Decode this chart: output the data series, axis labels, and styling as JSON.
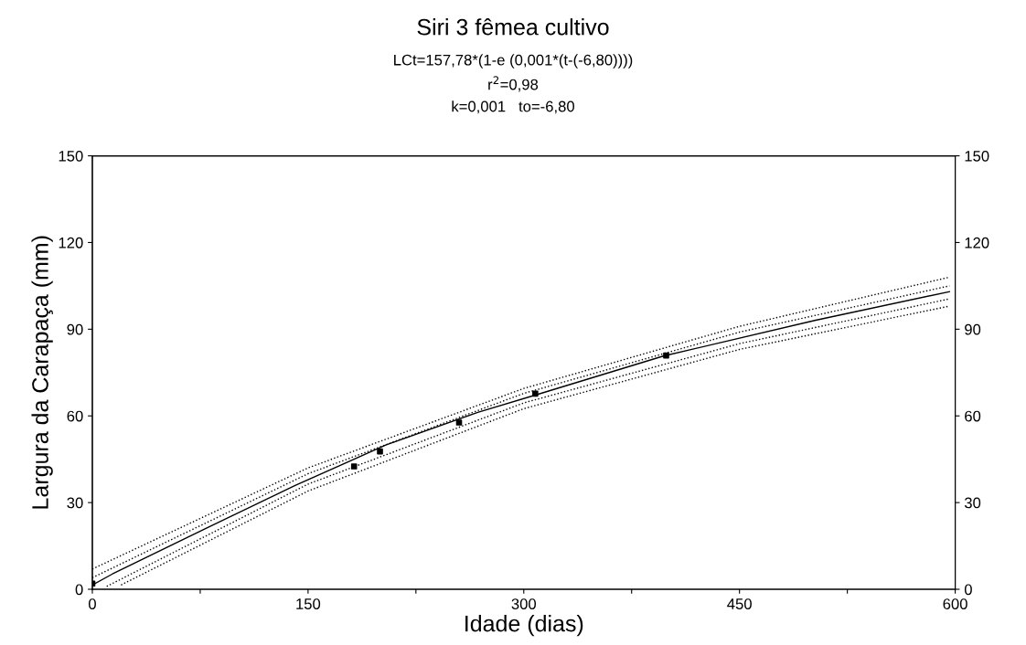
{
  "chart_data": {
    "type": "scatter",
    "title": "Siri 3 fêmea cultivo",
    "annotations": [
      "LCt=157,78*(1-e (0,001*(t-(-6,80))))",
      "r$^{2}$=0,98",
      "k=0,001   to=-6,80"
    ],
    "xlabel": "Idade (dias)",
    "ylabel": "Largura da Carapaça (mm)",
    "xlim": [
      0,
      600
    ],
    "xticks": [
      0,
      {
        "value": 75,
        "label": null
      },
      150,
      {
        "value": 225,
        "label": null
      },
      300,
      {
        "value": 375,
        "label": null
      },
      450,
      {
        "value": 525,
        "label": null
      },
      600
    ],
    "ylim": [
      0,
      150
    ],
    "yticks": [
      0,
      30,
      60,
      90,
      120,
      150
    ],
    "y2lim": [
      0,
      150
    ],
    "y2ticks": [
      0,
      30,
      60,
      90,
      120,
      150
    ],
    "grid": false,
    "series": [
      {
        "color": "#000000",
        "marker": "square",
        "x": [
          0,
          182,
          200,
          255,
          308,
          399
        ],
        "values": [
          2,
          42.5,
          47.7,
          57.7,
          67.7,
          80.9
        ]
      },
      {
        "type": "line",
        "color": "#000000",
        "line_style": "solid",
        "marker": "none",
        "x": [
          0,
          14,
          77,
          141,
          204,
          268,
          310,
          397,
          503,
          596
        ],
        "values": [
          1.5,
          5.3,
          20.6,
          35.9,
          49.9,
          61.2,
          67.5,
          80.7,
          93.1,
          103
        ]
      },
      {
        "type": "line",
        "color": "#000000",
        "line_style": "dotted",
        "marker": "none",
        "x": [
          0,
          150,
          300,
          450,
          596
        ],
        "values": [
          7,
          42,
          69.5,
          91,
          108
        ]
      },
      {
        "type": "line",
        "color": "#000000",
        "line_style": "dotted",
        "marker": "none",
        "x": [
          0,
          150,
          300,
          450,
          596
        ],
        "values": [
          4,
          40,
          67.8,
          89,
          105
        ]
      },
      {
        "type": "line",
        "color": "#000000",
        "line_style": "dotted",
        "marker": "none",
        "x": [
          10,
          150,
          300,
          450,
          596
        ],
        "values": [
          1,
          36.4,
          64.5,
          85,
          100.5
        ]
      },
      {
        "type": "line",
        "color": "#000000",
        "line_style": "dotted",
        "marker": "none",
        "x": [
          20,
          150,
          300,
          450,
          596
        ],
        "values": [
          1.5,
          34,
          62.5,
          83,
          98
        ]
      }
    ]
  }
}
